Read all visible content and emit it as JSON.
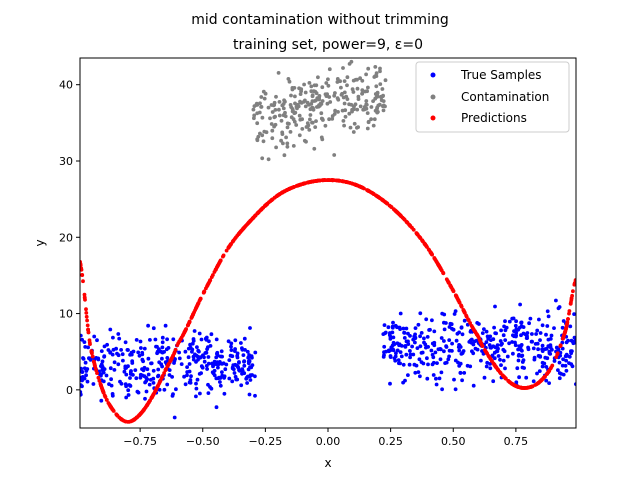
{
  "chart_data": {
    "type": "scatter",
    "title": "mid contamination without trimming",
    "subtitle": "training set, power=9, ε=0",
    "xlabel": "x",
    "ylabel": "y",
    "xlim": [
      -0.99,
      0.99
    ],
    "ylim": [
      -5,
      43.5
    ],
    "xticks": [
      -0.75,
      -0.5,
      -0.25,
      0.0,
      0.25,
      0.5,
      0.75
    ],
    "xtick_labels": [
      "−0.75",
      "−0.50",
      "−0.25",
      "0.00",
      "0.25",
      "0.50",
      "0.75"
    ],
    "yticks": [
      0,
      10,
      20,
      30,
      40
    ],
    "ytick_labels": [
      "0",
      "10",
      "20",
      "30",
      "40"
    ],
    "grid": false,
    "legend_position": "upper right",
    "series": [
      {
        "name": "True Samples",
        "color": "#0000ff",
        "description": "noisy samples, y≈4±3, on x∈[-0.99,-0.3] ∪ [0.22,0.99]",
        "regions": [
          {
            "x": [
              -0.99,
              -0.29
            ],
            "y_mean": 3.2,
            "y_spread": 3.5
          },
          {
            "x": [
              0.22,
              0.99
            ],
            "y_mean": 5.8,
            "y_spread": 3.5
          }
        ]
      },
      {
        "name": "Contamination",
        "color": "#808080",
        "description": "outlier cluster y≈37±3 on x∈[-0.3,0.23]",
        "regions": [
          {
            "x": [
              -0.3,
              0.23
            ],
            "y_mean": 37.2,
            "y_spread": 4.0
          }
        ]
      },
      {
        "name": "Predictions",
        "color": "#ff0000",
        "description": "degree-9 polynomial fit",
        "curve_points": [
          [
            -0.99,
            16.8
          ],
          [
            -0.95,
            6.0
          ],
          [
            -0.9,
            0.0
          ],
          [
            -0.85,
            -3.0
          ],
          [
            -0.8,
            -4.2
          ],
          [
            -0.75,
            -3.2
          ],
          [
            -0.7,
            -0.8
          ],
          [
            -0.65,
            2.5
          ],
          [
            -0.6,
            6.0
          ],
          [
            -0.5,
            12.5
          ],
          [
            -0.4,
            18.5
          ],
          [
            -0.3,
            22.5
          ],
          [
            -0.2,
            25.5
          ],
          [
            -0.1,
            27.0
          ],
          [
            0.0,
            27.5
          ],
          [
            0.1,
            27.0
          ],
          [
            0.2,
            25.3
          ],
          [
            0.3,
            22.5
          ],
          [
            0.4,
            18.5
          ],
          [
            0.5,
            13.0
          ],
          [
            0.6,
            7.0
          ],
          [
            0.65,
            4.0
          ],
          [
            0.7,
            1.8
          ],
          [
            0.75,
            0.5
          ],
          [
            0.8,
            0.3
          ],
          [
            0.85,
            1.2
          ],
          [
            0.9,
            3.5
          ],
          [
            0.95,
            8.0
          ],
          [
            0.99,
            14.5
          ]
        ]
      }
    ]
  }
}
